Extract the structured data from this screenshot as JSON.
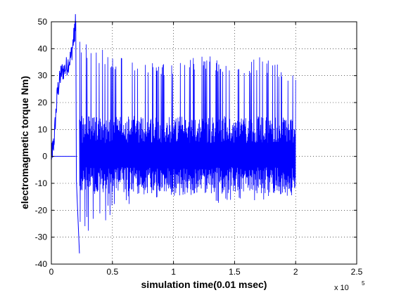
{
  "chart_data": {
    "type": "line",
    "title": "",
    "xlabel": "simulation time(0.01 msec)",
    "ylabel": "electromagmetic torque Nm)",
    "x_multiplier": "x 10",
    "x_multiplier_exp": "5",
    "xlim": [
      0,
      2.5
    ],
    "ylim": [
      -40,
      50
    ],
    "x_ticks": [
      "0",
      "0.5",
      "1",
      "1.5",
      "2",
      "2.5"
    ],
    "x_tick_values": [
      0,
      0.5,
      1,
      1.5,
      2,
      2.5
    ],
    "y_ticks": [
      "-40",
      "-30",
      "-20",
      "-10",
      "0",
      "10",
      "20",
      "30",
      "40",
      "50"
    ],
    "y_tick_values": [
      -40,
      -30,
      -20,
      -10,
      0,
      10,
      20,
      30,
      40,
      50
    ],
    "grid": true,
    "series": [
      {
        "color": "#0000ff",
        "phases": [
          {
            "x_start": 0,
            "x_end": 0.2,
            "description_y": 0
          },
          {
            "x_start": 0.2,
            "x_end": 2.0
          }
        ],
        "startup_ramp": [
          {
            "x": 0.0,
            "y": 0
          },
          {
            "x": 0.02,
            "y": 5
          },
          {
            "x": 0.05,
            "y": 24
          },
          {
            "x": 0.08,
            "y": 31
          },
          {
            "x": 0.12,
            "y": 33
          },
          {
            "x": 0.16,
            "y": 37
          },
          {
            "x": 0.19,
            "y": 46
          },
          {
            "x": 0.2,
            "y": 50
          },
          {
            "x": 0.205,
            "y": -9
          },
          {
            "x": 0.23,
            "y": -36
          }
        ],
        "envelope": [
          {
            "x": 0.25,
            "upper": 43,
            "lower": -30
          },
          {
            "x": 0.35,
            "upper": 41,
            "lower": -27
          },
          {
            "x": 0.5,
            "upper": 38,
            "lower": -22
          },
          {
            "x": 0.75,
            "upper": 36,
            "lower": -16
          },
          {
            "x": 1.0,
            "upper": 35,
            "lower": -15
          },
          {
            "x": 1.25,
            "upper": 38,
            "lower": -17
          },
          {
            "x": 1.5,
            "upper": 36,
            "lower": -18
          },
          {
            "x": 1.75,
            "upper": 37,
            "lower": -17
          },
          {
            "x": 2.0,
            "upper": 30,
            "lower": -15
          }
        ]
      }
    ]
  }
}
